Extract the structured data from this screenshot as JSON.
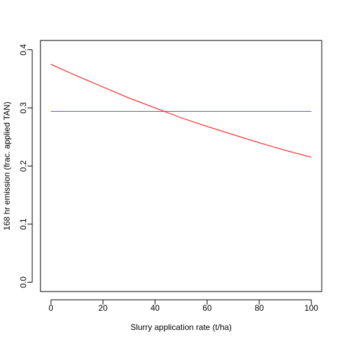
{
  "chart_data": {
    "type": "line",
    "title": "",
    "xlabel": "Slurry application rate (t/ha)",
    "ylabel": "168 hr emission (frac. applied TAN)",
    "xlim": [
      -4,
      104
    ],
    "ylim": [
      -0.016,
      0.416
    ],
    "grid": false,
    "legend": "none",
    "x_ticks": [
      0,
      20,
      40,
      60,
      80,
      100
    ],
    "x_tick_labels": [
      "0",
      "20",
      "40",
      "60",
      "80",
      "100"
    ],
    "y_ticks": [
      0.0,
      0.1,
      0.2,
      0.3,
      0.4
    ],
    "y_tick_labels": [
      "0.0",
      "0.1",
      "0.2",
      "0.3",
      "0.4"
    ],
    "series": [
      {
        "color": "#ff0000",
        "x": [
          0,
          10,
          20,
          30,
          40,
          50,
          60,
          70,
          80,
          90,
          100
        ],
        "y": [
          0.375,
          0.355,
          0.336,
          0.317,
          0.3,
          0.283,
          0.268,
          0.254,
          0.24,
          0.227,
          0.215
        ]
      },
      {
        "color": "#4c4cff",
        "x": [
          0,
          100
        ],
        "y": [
          0.294,
          0.294
        ]
      }
    ]
  }
}
